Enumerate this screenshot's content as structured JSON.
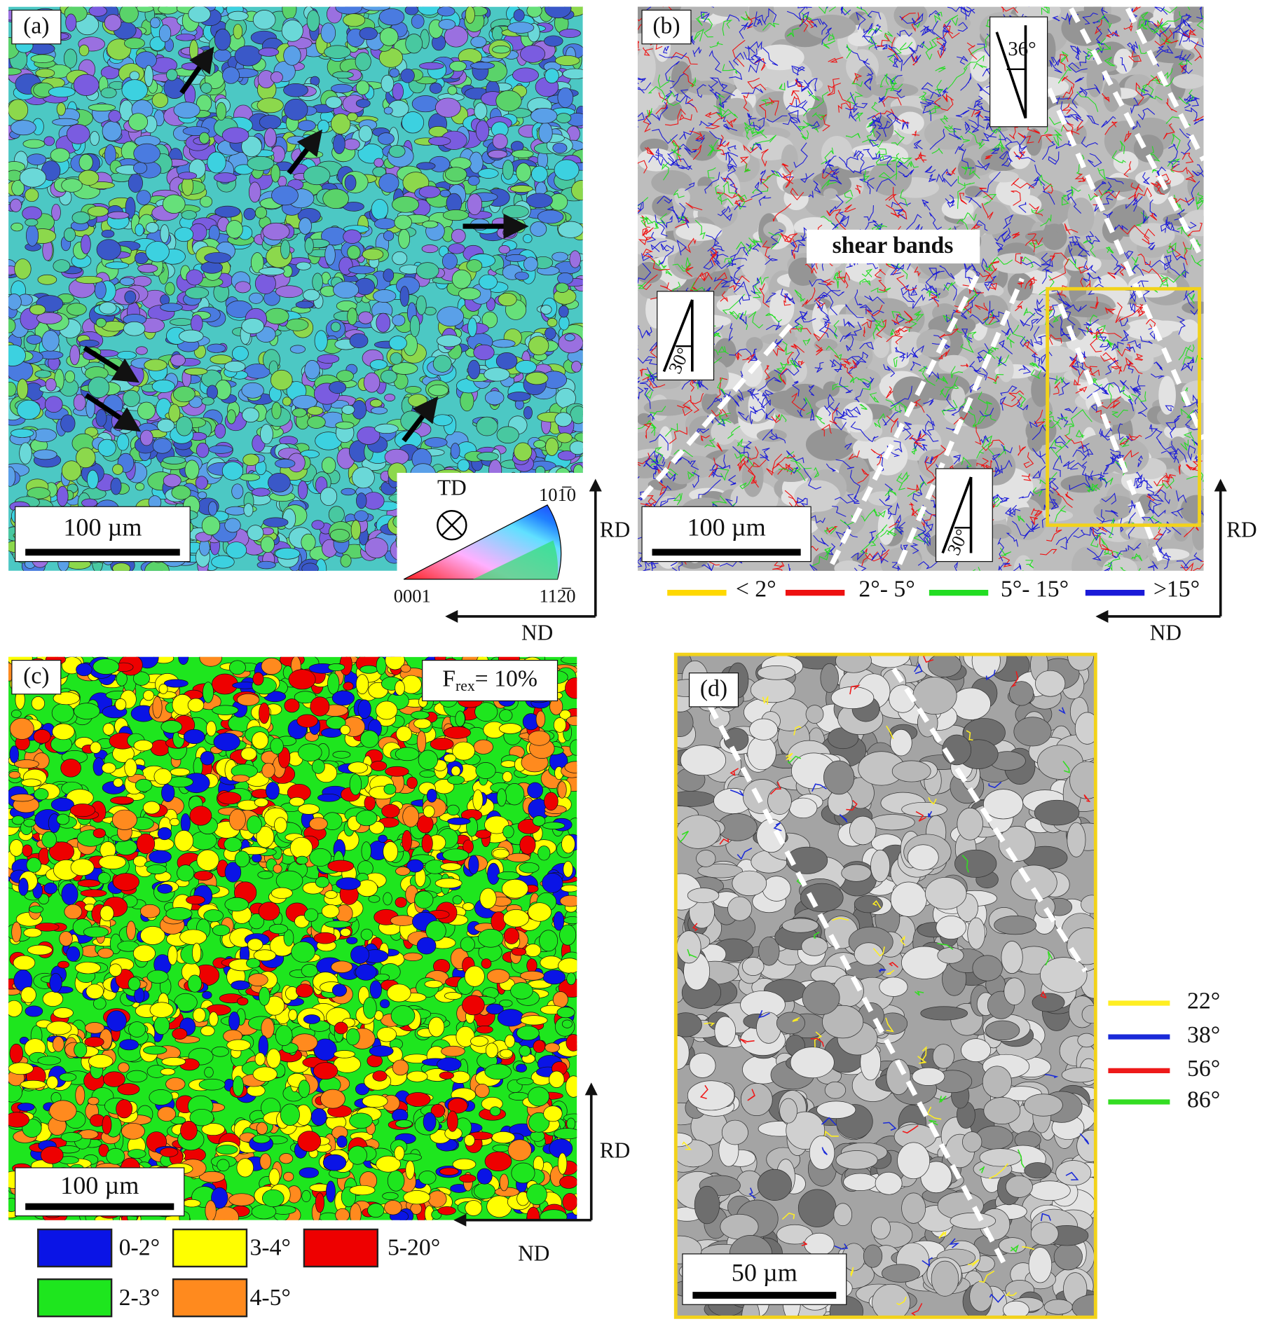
{
  "panels": [
    {
      "label": "(a)",
      "scale_bar": "100 µm",
      "key": {
        "title": "TD",
        "corner_top": "101̅0",
        "corner_left": "0001",
        "corner_right": "112̅0"
      },
      "axes": {
        "vertical": "RD",
        "horizontal": "ND"
      }
    },
    {
      "label": "(b)",
      "scale_bar": "100 µm",
      "annotation": "shear bands",
      "angles": [
        "36°",
        "30°",
        "30°"
      ],
      "legend": [
        {
          "label": "< 2°",
          "color": "#ffd800"
        },
        {
          "label": "2°- 5°",
          "color": "#ee1111"
        },
        {
          "label": "5°- 15°",
          "color": "#22dd22"
        },
        {
          "label": ">15°",
          "color": "#1a1ad8"
        }
      ],
      "axes": {
        "vertical": "RD",
        "horizontal": "ND"
      }
    },
    {
      "label": "(c)",
      "fraction": {
        "symbol": "F",
        "subscript": "rex",
        "text": "= 10%"
      },
      "scale_bar": "100 µm",
      "legend": [
        {
          "label": "0-2°",
          "color": "#0a14e6"
        },
        {
          "label": "2-3°",
          "color": "#1ee61e"
        },
        {
          "label": "3-4°",
          "color": "#ffff00"
        },
        {
          "label": "4-5°",
          "color": "#ff8a1e"
        },
        {
          "label": "5-20°",
          "color": "#ee0000"
        }
      ],
      "axes": {
        "vertical": "RD",
        "horizontal": "ND"
      }
    },
    {
      "label": "(d)",
      "scale_bar": "50 µm",
      "legend": [
        {
          "label": "22°",
          "color": "#ffee22"
        },
        {
          "label": "38°",
          "color": "#1a2ad8"
        },
        {
          "label": "56°",
          "color": "#ee1a1a"
        },
        {
          "label": "86°",
          "color": "#33dd22"
        }
      ]
    }
  ]
}
